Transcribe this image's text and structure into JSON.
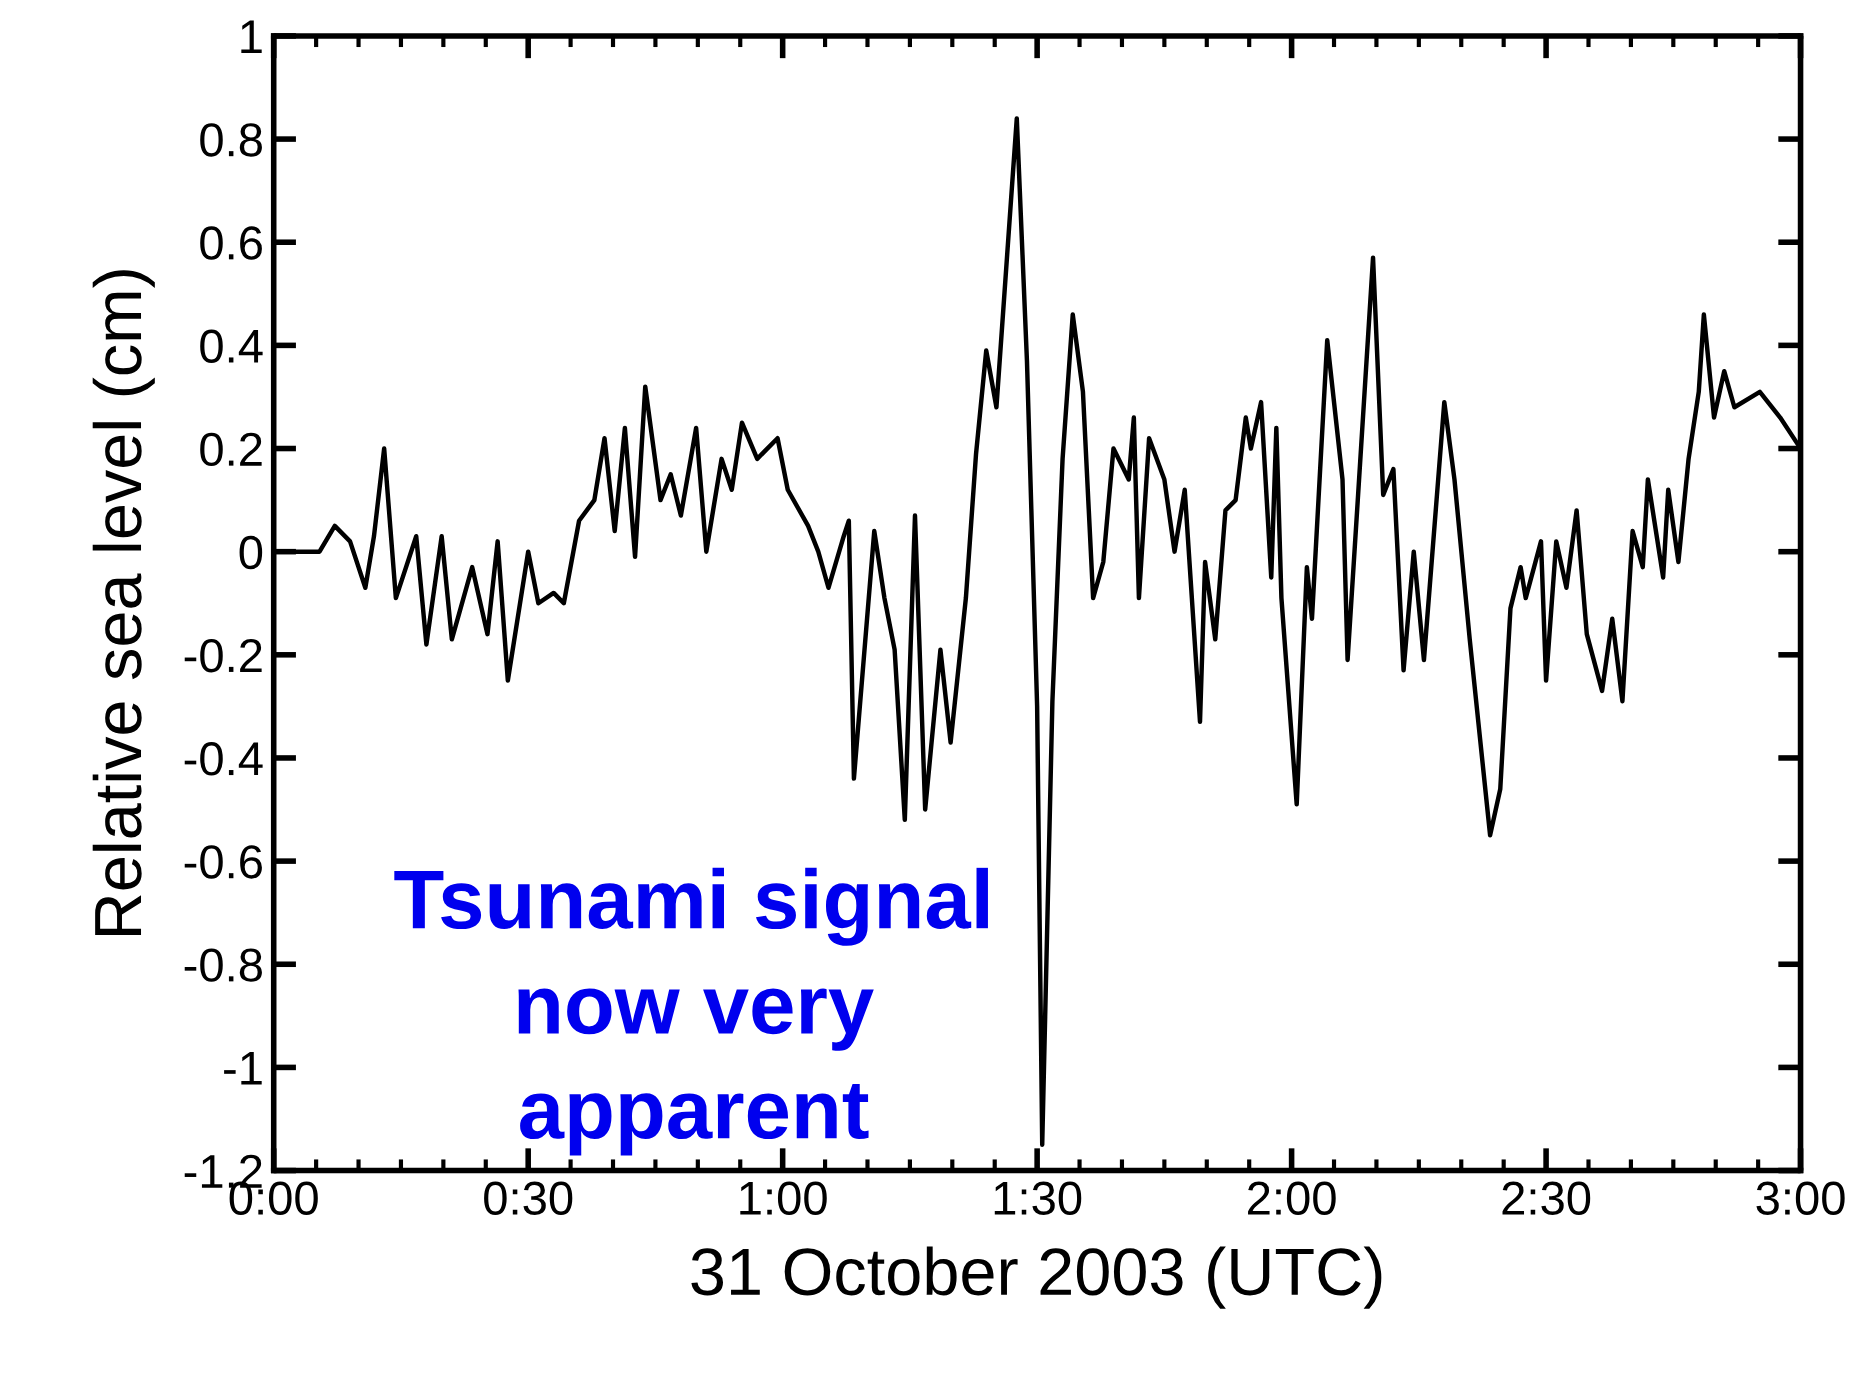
{
  "chart_data": {
    "type": "line",
    "xlabel": "31 October 2003 (UTC)",
    "ylabel": "Relative sea level (cm)",
    "annotations": [
      "Tsunami signal\nnow very\napparent"
    ],
    "series": [
      {
        "color": "#000000",
        "x": [
          0,
          0.05,
          0.09,
          0.12,
          0.15,
          0.18,
          0.197,
          0.217,
          0.24,
          0.28,
          0.3,
          0.33,
          0.35,
          0.39,
          0.42,
          0.44,
          0.46,
          0.5,
          0.52,
          0.55,
          0.57,
          0.6,
          0.63,
          0.65,
          0.67,
          0.69,
          0.71,
          0.73,
          0.76,
          0.78,
          0.8,
          0.83,
          0.85,
          0.88,
          0.9,
          0.92,
          0.95,
          0.99,
          1.01,
          1.05,
          1.07,
          1.09,
          1.12,
          1.13,
          1.14,
          1.18,
          1.2,
          1.22,
          1.24,
          1.26,
          1.28,
          1.31,
          1.33,
          1.36,
          1.38,
          1.4,
          1.42,
          1.46,
          1.48,
          1.5,
          1.51,
          1.53,
          1.55,
          1.57,
          1.59,
          1.61,
          1.63,
          1.65,
          1.68,
          1.69,
          1.7,
          1.72,
          1.75,
          1.77,
          1.79,
          1.82,
          1.83,
          1.85,
          1.87,
          1.89,
          1.91,
          1.92,
          1.94,
          1.96,
          1.97,
          1.98,
          2.01,
          2.03,
          2.04,
          2.07,
          2.1,
          2.11,
          2.13,
          2.16,
          2.18,
          2.2,
          2.22,
          2.24,
          2.26,
          2.3,
          2.32,
          2.35,
          2.39,
          2.41,
          2.43,
          2.45,
          2.46,
          2.49,
          2.5,
          2.52,
          2.54,
          2.56,
          2.58,
          2.61,
          2.63,
          2.65,
          2.67,
          2.69,
          2.7,
          2.73,
          2.74,
          2.76,
          2.78,
          2.8,
          2.81,
          2.83,
          2.85,
          2.87,
          2.92,
          2.96,
          3.0
        ],
        "values": [
          0,
          0,
          0,
          0.05,
          0.02,
          -0.07,
          0.03,
          0.2,
          -0.09,
          0.03,
          -0.18,
          0.03,
          -0.17,
          -0.03,
          -0.16,
          0.02,
          -0.25,
          0,
          -0.1,
          -0.08,
          -0.1,
          0.06,
          0.1,
          0.22,
          0.04,
          0.24,
          -0.01,
          0.32,
          0.1,
          0.15,
          0.07,
          0.24,
          0,
          0.18,
          0.12,
          0.25,
          0.18,
          0.22,
          0.12,
          0.05,
          0,
          -0.07,
          0.03,
          0.06,
          -0.44,
          0.04,
          -0.09,
          -0.19,
          -0.52,
          0.07,
          -0.5,
          -0.19,
          -0.37,
          -0.09,
          0.19,
          0.39,
          0.28,
          0.84,
          0.37,
          -0.3,
          -1.15,
          -0.29,
          0.18,
          0.46,
          0.31,
          -0.09,
          -0.02,
          0.2,
          0.14,
          0.26,
          -0.09,
          0.22,
          0.14,
          0,
          0.12,
          -0.33,
          -0.02,
          -0.17,
          0.08,
          0.1,
          0.26,
          0.2,
          0.29,
          -0.05,
          0.24,
          -0.09,
          -0.49,
          -0.03,
          -0.13,
          0.41,
          0.14,
          -0.21,
          0.1,
          0.57,
          0.11,
          0.16,
          -0.23,
          0,
          -0.21,
          0.29,
          0.14,
          -0.17,
          -0.55,
          -0.46,
          -0.11,
          -0.03,
          -0.09,
          0.02,
          -0.25,
          0.02,
          -0.07,
          0.08,
          -0.16,
          -0.27,
          -0.13,
          -0.29,
          0.04,
          -0.03,
          0.14,
          -0.05,
          0.12,
          -0.02,
          0.18,
          0.31,
          0.46,
          0.26,
          0.35,
          0.28,
          0.31,
          0.26,
          0.2
        ]
      }
    ],
    "xlim": [
      0,
      3
    ],
    "xticks": [
      {
        "value": 0,
        "label": "0:00"
      },
      {
        "value": 0.5,
        "label": "0:30"
      },
      {
        "value": 1,
        "label": "1:00"
      },
      {
        "value": 1.5,
        "label": "1:30"
      },
      {
        "value": 2,
        "label": "2:00"
      },
      {
        "value": 2.5,
        "label": "2:30"
      },
      {
        "value": 3,
        "label": "3:00"
      }
    ],
    "ylim": [
      -1.2,
      1
    ],
    "yticks": [
      -1.2,
      -1,
      -0.8,
      -0.6,
      -0.4,
      -0.2,
      0,
      0.2,
      0.4,
      0.6,
      0.8,
      1
    ],
    "grid": false,
    "legend": false,
    "marker": "none",
    "line_style": "solid"
  }
}
